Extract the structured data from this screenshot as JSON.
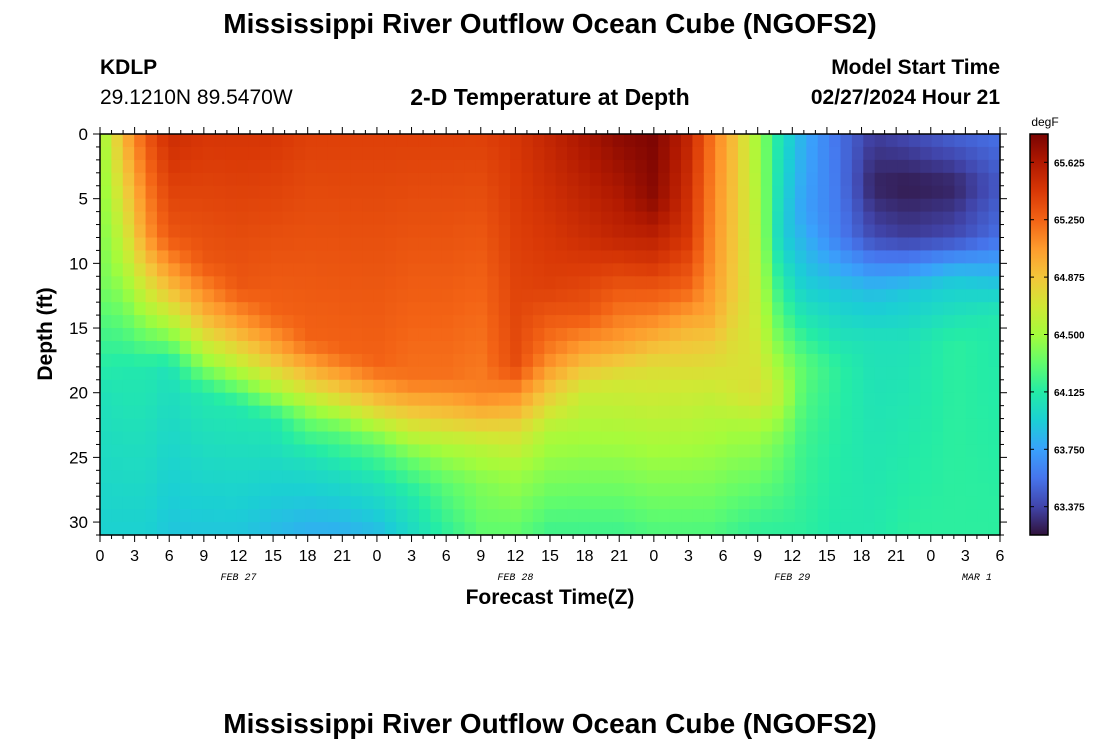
{
  "header": {
    "title": "Mississippi River Outflow Ocean Cube (NGOFS2)",
    "station_id": "KDLP",
    "station_coords": "29.1210N  89.5470W",
    "plot_title": "2-D Temperature at Depth",
    "start_time_label": "Model Start Time",
    "start_time_value": "02/27/2024 Hour 21"
  },
  "footer": {
    "title": "Mississippi River Outflow Ocean Cube (NGOFS2)"
  },
  "chart_data": {
    "type": "heatmap",
    "xlabel": "Forecast Time(Z)",
    "ylabel": "Depth (ft)",
    "colorbar_unit": "degF",
    "x_hours_range": [
      0,
      78
    ],
    "ylim": [
      0,
      31
    ],
    "y_ticks": [
      "0",
      "5",
      "10",
      "15",
      "20",
      "25",
      "30"
    ],
    "x_tick_labels": [
      "0",
      "3",
      "6",
      "9",
      "12",
      "15",
      "18",
      "21",
      "0",
      "3",
      "6",
      "9",
      "12",
      "15",
      "18",
      "21",
      "0",
      "3",
      "6",
      "9",
      "12",
      "15",
      "18",
      "21",
      "0",
      "3",
      "6"
    ],
    "date_labels": [
      {
        "text": "FEB 27",
        "hour": 12
      },
      {
        "text": "FEB 28",
        "hour": 36
      },
      {
        "text": "MAR 1",
        "hour": 76
      }
    ],
    "date_labels_extra": [
      {
        "text": "FEB 29",
        "hour": 60
      }
    ],
    "colorbar_ticks": [
      "65.625",
      "65.250",
      "64.875",
      "64.500",
      "64.125",
      "63.750",
      "63.375"
    ],
    "colorbar_tick_values": [
      65.625,
      65.25,
      64.875,
      64.5,
      64.125,
      63.75,
      63.375
    ],
    "color_range": [
      63.19,
      65.81
    ],
    "colormap": [
      "#30123b",
      "#4145ab",
      "#4675ed",
      "#39a2fc",
      "#1bcfd4",
      "#24eca6",
      "#61fc6c",
      "#a4fc3b",
      "#d1e834",
      "#f3c63a",
      "#fe9b2d",
      "#f36315",
      "#d93806",
      "#b11901",
      "#7a0402"
    ],
    "profiles": [
      {
        "hour": 0,
        "levels": [
          [
            0,
            64.45
          ],
          [
            12,
            64.35
          ],
          [
            20,
            64.05
          ],
          [
            31,
            63.95
          ]
        ]
      },
      {
        "hour": 2,
        "levels": [
          [
            0,
            64.95
          ],
          [
            10,
            64.55
          ],
          [
            18,
            64.1
          ],
          [
            31,
            63.95
          ]
        ]
      },
      {
        "hour": 4,
        "levels": [
          [
            0,
            65.3
          ],
          [
            8,
            65.05
          ],
          [
            13,
            64.6
          ],
          [
            18,
            64.1
          ],
          [
            31,
            63.95
          ]
        ]
      },
      {
        "hour": 6,
        "levels": [
          [
            0,
            65.5
          ],
          [
            8,
            65.3
          ],
          [
            12,
            64.9
          ],
          [
            15,
            64.5
          ],
          [
            18,
            64.05
          ],
          [
            31,
            63.9
          ]
        ]
      },
      {
        "hour": 9,
        "levels": [
          [
            0,
            65.45
          ],
          [
            10,
            65.3
          ],
          [
            14,
            64.95
          ],
          [
            17,
            64.55
          ],
          [
            20,
            64.1
          ],
          [
            31,
            63.9
          ]
        ]
      },
      {
        "hour": 12,
        "levels": [
          [
            0,
            65.45
          ],
          [
            12,
            65.3
          ],
          [
            15,
            65.0
          ],
          [
            18,
            64.6
          ],
          [
            21,
            64.1
          ],
          [
            31,
            63.9
          ]
        ]
      },
      {
        "hour": 15,
        "levels": [
          [
            0,
            65.45
          ],
          [
            14,
            65.25
          ],
          [
            17,
            64.95
          ],
          [
            20,
            64.5
          ],
          [
            22,
            64.1
          ],
          [
            31,
            63.85
          ]
        ]
      },
      {
        "hour": 18,
        "levels": [
          [
            0,
            65.4
          ],
          [
            16,
            65.25
          ],
          [
            19,
            64.85
          ],
          [
            22,
            64.35
          ],
          [
            25,
            64.05
          ],
          [
            31,
            63.8
          ]
        ]
      },
      {
        "hour": 21,
        "levels": [
          [
            0,
            65.4
          ],
          [
            17,
            65.25
          ],
          [
            20,
            64.85
          ],
          [
            23,
            64.3
          ],
          [
            26,
            64.05
          ],
          [
            31,
            63.8
          ]
        ]
      },
      {
        "hour": 24,
        "levels": [
          [
            0,
            65.4
          ],
          [
            18,
            65.25
          ],
          [
            21,
            64.85
          ],
          [
            24,
            64.3
          ],
          [
            27,
            64.05
          ],
          [
            31,
            63.85
          ]
        ]
      },
      {
        "hour": 27,
        "levels": [
          [
            0,
            65.4
          ],
          [
            19,
            65.2
          ],
          [
            22,
            64.8
          ],
          [
            25,
            64.35
          ],
          [
            28,
            64.1
          ],
          [
            31,
            64.0
          ]
        ]
      },
      {
        "hour": 30,
        "levels": [
          [
            0,
            65.4
          ],
          [
            19,
            65.2
          ],
          [
            22,
            64.85
          ],
          [
            24,
            64.55
          ],
          [
            27,
            64.3
          ],
          [
            31,
            64.15
          ]
        ]
      },
      {
        "hour": 33,
        "levels": [
          [
            0,
            65.4
          ],
          [
            20,
            65.15
          ],
          [
            22,
            64.9
          ],
          [
            24,
            64.6
          ],
          [
            27,
            64.4
          ],
          [
            31,
            64.3
          ]
        ]
      },
      {
        "hour": 36,
        "levels": [
          [
            0,
            65.45
          ],
          [
            18,
            65.35
          ],
          [
            21,
            65.0
          ],
          [
            23,
            64.75
          ],
          [
            26,
            64.5
          ],
          [
            31,
            64.3
          ]
        ]
      },
      {
        "hour": 39,
        "levels": [
          [
            0,
            65.55
          ],
          [
            12,
            65.4
          ],
          [
            17,
            65.15
          ],
          [
            20,
            64.85
          ],
          [
            23,
            64.55
          ],
          [
            31,
            64.2
          ]
        ]
      },
      {
        "hour": 42,
        "levels": [
          [
            0,
            65.65
          ],
          [
            8,
            65.5
          ],
          [
            14,
            65.3
          ],
          [
            17,
            65.0
          ],
          [
            20,
            64.65
          ],
          [
            31,
            64.2
          ]
        ]
      },
      {
        "hour": 45,
        "levels": [
          [
            0,
            65.75
          ],
          [
            8,
            65.55
          ],
          [
            12,
            65.3
          ],
          [
            16,
            65.05
          ],
          [
            19,
            64.7
          ],
          [
            31,
            64.2
          ]
        ]
      },
      {
        "hour": 48,
        "levels": [
          [
            0,
            65.8
          ],
          [
            5,
            65.75
          ],
          [
            10,
            65.45
          ],
          [
            14,
            65.15
          ],
          [
            18,
            64.75
          ],
          [
            31,
            64.25
          ]
        ]
      },
      {
        "hour": 51,
        "levels": [
          [
            0,
            65.55
          ],
          [
            8,
            65.45
          ],
          [
            12,
            65.25
          ],
          [
            15,
            64.95
          ],
          [
            19,
            64.7
          ],
          [
            31,
            64.25
          ]
        ]
      },
      {
        "hour": 53,
        "levels": [
          [
            0,
            65.2
          ],
          [
            10,
            65.1
          ],
          [
            14,
            65.0
          ],
          [
            17,
            64.8
          ],
          [
            21,
            64.6
          ],
          [
            31,
            64.25
          ]
        ]
      },
      {
        "hour": 55,
        "levels": [
          [
            0,
            64.9
          ],
          [
            12,
            64.85
          ],
          [
            16,
            64.75
          ],
          [
            20,
            64.7
          ],
          [
            23,
            64.5
          ],
          [
            31,
            64.2
          ]
        ]
      },
      {
        "hour": 57,
        "levels": [
          [
            0,
            64.5
          ],
          [
            14,
            64.65
          ],
          [
            20,
            64.75
          ],
          [
            23,
            64.5
          ],
          [
            31,
            64.15
          ]
        ]
      },
      {
        "hour": 59,
        "levels": [
          [
            0,
            64.05
          ],
          [
            8,
            63.95
          ],
          [
            14,
            64.25
          ],
          [
            20,
            64.6
          ],
          [
            24,
            64.35
          ],
          [
            31,
            64.15
          ]
        ]
      },
      {
        "hour": 61,
        "levels": [
          [
            0,
            63.8
          ],
          [
            6,
            63.75
          ],
          [
            12,
            63.95
          ],
          [
            18,
            64.3
          ],
          [
            24,
            64.2
          ],
          [
            31,
            64.15
          ]
        ]
      },
      {
        "hour": 64,
        "levels": [
          [
            0,
            63.55
          ],
          [
            8,
            63.6
          ],
          [
            12,
            63.9
          ],
          [
            18,
            64.15
          ],
          [
            31,
            64.1
          ]
        ]
      },
      {
        "hour": 67,
        "levels": [
          [
            0,
            63.35
          ],
          [
            4,
            63.25
          ],
          [
            8,
            63.4
          ],
          [
            12,
            63.85
          ],
          [
            16,
            64.05
          ],
          [
            31,
            64.1
          ]
        ]
      },
      {
        "hour": 70,
        "levels": [
          [
            0,
            63.4
          ],
          [
            4,
            63.22
          ],
          [
            8,
            63.35
          ],
          [
            12,
            63.9
          ],
          [
            16,
            64.05
          ],
          [
            31,
            64.15
          ]
        ]
      },
      {
        "hour": 74,
        "levels": [
          [
            0,
            63.5
          ],
          [
            4,
            63.25
          ],
          [
            8,
            63.4
          ],
          [
            11,
            63.9
          ],
          [
            16,
            64.15
          ],
          [
            31,
            64.15
          ]
        ]
      },
      {
        "hour": 78,
        "levels": [
          [
            0,
            63.55
          ],
          [
            4,
            63.45
          ],
          [
            8,
            63.55
          ],
          [
            11,
            63.85
          ],
          [
            14,
            64.1
          ],
          [
            31,
            64.15
          ]
        ]
      }
    ]
  }
}
